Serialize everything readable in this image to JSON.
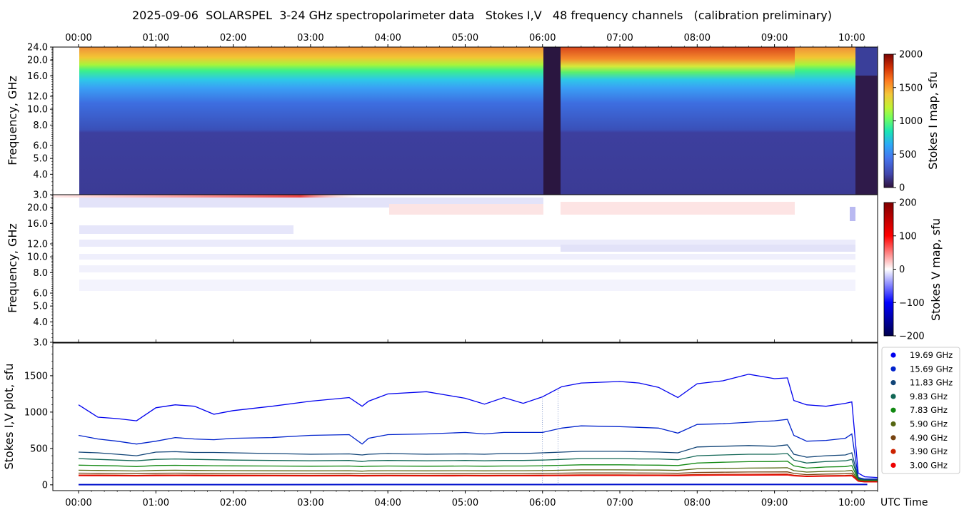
{
  "title": "2025-09-06  SOLARSPEL  3-24 GHz spectropolarimeter data   Stokes I,V   48 frequency channels   (calibration preliminary)",
  "chart_data": [
    {
      "type": "heatmap",
      "name": "stokes-i-map",
      "ylabel": "Frequency, GHz",
      "colorbar_label": "Stokes I map, sfu",
      "colorbar_ticks": [
        "0",
        "500",
        "1000",
        "1500",
        "2000"
      ],
      "colorbar_range": [
        0,
        2000
      ],
      "y_ticks": [
        "3.0",
        "4.0",
        "5.0",
        "6.0",
        "8.0",
        "10.0",
        "12.0",
        "16.0",
        "20.0",
        "24.0"
      ],
      "x_ticks": [
        "00:00",
        "01:00",
        "02:00",
        "03:00",
        "04:00",
        "05:00",
        "06:00",
        "07:00",
        "08:00",
        "09:00",
        "10:00"
      ],
      "x_range": [
        "00:00",
        "10:20"
      ],
      "y_range": [
        3,
        24
      ],
      "y_scale": "log",
      "data_gap": [
        "06:00",
        "06:13"
      ],
      "data_start": "00:00",
      "data_end": "10:05"
    },
    {
      "type": "heatmap",
      "name": "stokes-v-map",
      "ylabel": "Frequency, GHz",
      "colorbar_label": "Stokes V map, sfu",
      "colorbar_ticks": [
        "200",
        "100",
        "0",
        "−100",
        "−200"
      ],
      "colorbar_range": [
        -200,
        200
      ],
      "y_ticks": [
        "3.0",
        "4.0",
        "5.0",
        "6.0",
        "8.0",
        "10.0",
        "12.0",
        "16.0",
        "20.0"
      ],
      "y_range": [
        3,
        24
      ],
      "y_scale": "log"
    },
    {
      "type": "scatter",
      "name": "stokes-iv-plot",
      "ylabel": "Stokes I,V plot, sfu",
      "xlabel": "UTC Time",
      "x_ticks": [
        "00:00",
        "01:00",
        "02:00",
        "03:00",
        "04:00",
        "05:00",
        "06:00",
        "07:00",
        "08:00",
        "09:00",
        "10:00"
      ],
      "y_ticks": [
        "0",
        "500",
        "1000",
        "1500"
      ],
      "ylim": [
        -80,
        1950
      ],
      "x": [
        "00:00",
        "00:15",
        "00:30",
        "00:45",
        "01:00",
        "01:15",
        "01:30",
        "01:45",
        "02:00",
        "02:30",
        "03:00",
        "03:30",
        "03:40",
        "03:45",
        "04:00",
        "04:30",
        "05:00",
        "05:15",
        "05:30",
        "05:45",
        "06:00",
        "06:15",
        "06:30",
        "07:00",
        "07:15",
        "07:30",
        "07:45",
        "08:00",
        "08:20",
        "08:40",
        "09:00",
        "09:10",
        "09:15",
        "09:25",
        "09:40",
        "09:55",
        "10:00",
        "10:05",
        "10:10",
        "10:20"
      ],
      "series": [
        {
          "name": "19.69 GHz",
          "color": "#0000ee",
          "values": [
            1100,
            930,
            910,
            880,
            1060,
            1100,
            1080,
            970,
            1020,
            1080,
            1150,
            1200,
            1080,
            1150,
            1250,
            1280,
            1190,
            1110,
            1200,
            1120,
            1210,
            1350,
            1400,
            1420,
            1400,
            1340,
            1200,
            1390,
            1430,
            1520,
            1460,
            1470,
            1160,
            1100,
            1080,
            1120,
            1140,
            160,
            110,
            100
          ]
        },
        {
          "name": "15.69 GHz",
          "color": "#0022cc",
          "values": [
            680,
            630,
            600,
            560,
            600,
            650,
            630,
            620,
            640,
            650,
            680,
            690,
            560,
            640,
            690,
            700,
            720,
            700,
            720,
            720,
            720,
            780,
            810,
            800,
            790,
            780,
            710,
            830,
            840,
            860,
            880,
            900,
            680,
            600,
            610,
            640,
            700,
            100,
            80,
            80
          ]
        },
        {
          "name": "11.83 GHz",
          "color": "#114477",
          "values": [
            450,
            440,
            420,
            400,
            450,
            455,
            445,
            445,
            440,
            430,
            420,
            425,
            410,
            420,
            430,
            420,
            425,
            420,
            430,
            430,
            440,
            450,
            460,
            460,
            455,
            450,
            440,
            520,
            530,
            540,
            530,
            550,
            420,
            380,
            400,
            410,
            440,
            90,
            70,
            70
          ]
        },
        {
          "name": "9.83 GHz",
          "color": "#116655",
          "values": [
            360,
            350,
            340,
            330,
            350,
            355,
            350,
            345,
            340,
            335,
            330,
            335,
            320,
            330,
            335,
            330,
            335,
            330,
            335,
            335,
            340,
            350,
            360,
            360,
            355,
            355,
            345,
            400,
            410,
            420,
            420,
            430,
            340,
            300,
            320,
            330,
            350,
            80,
            60,
            60
          ]
        },
        {
          "name": "7.83 GHz",
          "color": "#118811",
          "values": [
            270,
            265,
            260,
            250,
            265,
            268,
            265,
            262,
            260,
            258,
            255,
            258,
            250,
            255,
            258,
            255,
            258,
            255,
            258,
            258,
            262,
            268,
            275,
            275,
            272,
            270,
            265,
            300,
            310,
            318,
            320,
            325,
            260,
            230,
            245,
            250,
            265,
            70,
            55,
            55
          ]
        },
        {
          "name": "5.90 GHz",
          "color": "#556611",
          "values": [
            200,
            198,
            195,
            190,
            198,
            200,
            198,
            196,
            195,
            193,
            192,
            194,
            188,
            192,
            194,
            192,
            194,
            192,
            194,
            194,
            196,
            200,
            205,
            205,
            203,
            202,
            198,
            220,
            225,
            230,
            232,
            235,
            195,
            175,
            185,
            190,
            198,
            60,
            50,
            50
          ]
        },
        {
          "name": "4.90 GHz",
          "color": "#774411",
          "values": [
            160,
            158,
            156,
            152,
            158,
            160,
            158,
            157,
            156,
            155,
            154,
            155,
            151,
            154,
            155,
            154,
            155,
            154,
            155,
            155,
            157,
            160,
            163,
            163,
            162,
            161,
            158,
            170,
            173,
            176,
            177,
            178,
            156,
            140,
            148,
            152,
            158,
            55,
            45,
            45
          ]
        },
        {
          "name": "3.90 GHz",
          "color": "#cc2200",
          "values": [
            135,
            134,
            133,
            130,
            134,
            135,
            134,
            133,
            133,
            132,
            131,
            132,
            129,
            131,
            132,
            131,
            132,
            131,
            132,
            132,
            133,
            135,
            137,
            137,
            136,
            136,
            134,
            142,
            144,
            146,
            147,
            148,
            132,
            120,
            126,
            129,
            133,
            50,
            42,
            42
          ]
        },
        {
          "name": "3.00 GHz",
          "color": "#ee0000",
          "values": [
            125,
            124,
            123,
            121,
            124,
            125,
            124,
            123,
            123,
            122,
            121,
            122,
            120,
            121,
            122,
            121,
            122,
            121,
            122,
            122,
            123,
            125,
            127,
            127,
            126,
            126,
            124,
            130,
            132,
            133,
            134,
            135,
            122,
            112,
            117,
            120,
            123,
            48,
            40,
            40
          ]
        }
      ],
      "v_series_note": ""
    }
  ]
}
